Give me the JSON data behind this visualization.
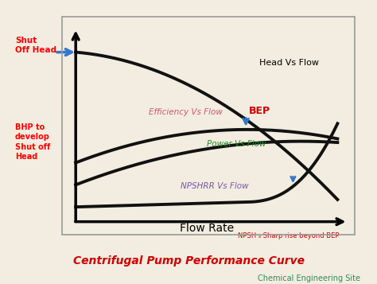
{
  "title": "Centrifugal Pump Performance Curve",
  "subtitle": "Chemical Engineering Site",
  "xlabel": "Flow Rate",
  "bg_color": "#f2ede0",
  "title_color": "#cc0000",
  "subtitle_color": "#2e8b57",
  "curve_color": "#111111",
  "head_label": "Head Vs Flow",
  "eff_label": "Efficiency Vs Flow",
  "power_label": "Power Vs Flow",
  "npshr_label": "NPSHRR Vs Flow",
  "bep_label": "BEP",
  "shut_off_label": "Shut\nOff Head",
  "bhp_label": "BHP to\ndevelop\nShut off\nHead",
  "npsh_rise_label": "NPSH ₐ Sharp rise beyond BEP",
  "eff_label_color": "#cc5577",
  "power_label_color": "#228b22",
  "npshr_label_color": "#7755aa",
  "bep_color": "#cc0000",
  "arrow_color": "#3377cc",
  "shut_arrow_color": "#3377cc"
}
